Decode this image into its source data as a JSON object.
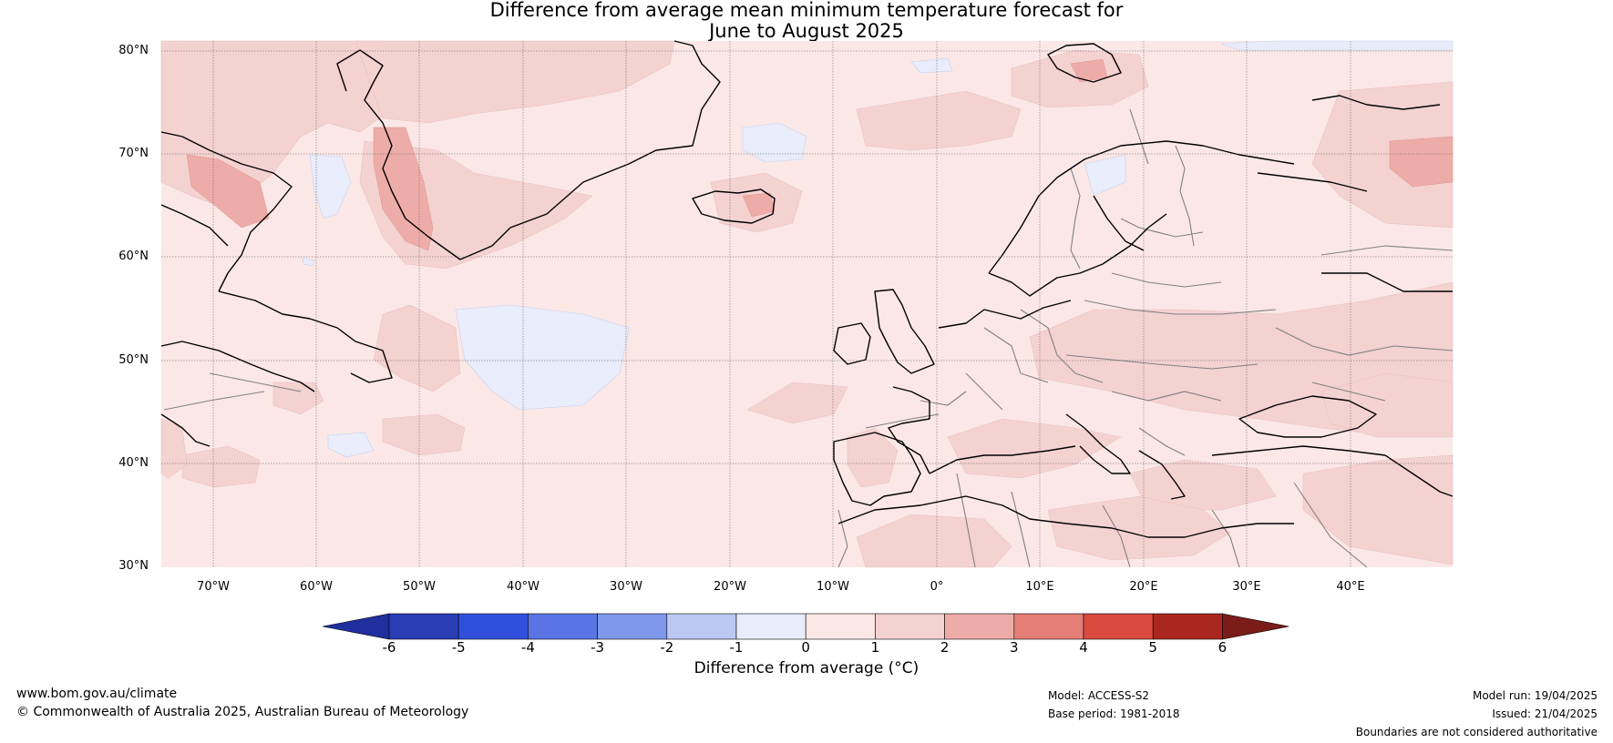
{
  "title_line1": "Difference from average mean minimum temperature forecast for",
  "title_line2": "June to August 2025",
  "lat_labels": [
    "80°N",
    "70°N",
    "60°N",
    "50°N",
    "40°N",
    "30°N"
  ],
  "lon_labels": [
    "70°W",
    "60°W",
    "50°W",
    "40°W",
    "30°W",
    "20°W",
    "10°W",
    "0°",
    "10°E",
    "20°E",
    "30°E",
    "40°E"
  ],
  "colorbar": {
    "ticks": [
      "-6",
      "-5",
      "-4",
      "-3",
      "-2",
      "-1",
      "0",
      "1",
      "2",
      "3",
      "4",
      "5",
      "6"
    ],
    "colors": [
      "#1f2f9e",
      "#2a3db5",
      "#3050dc",
      "#5a74e6",
      "#8098eb",
      "#bcc8f2",
      "#e8ecfb",
      "#fbe8e6",
      "#f4d2d0",
      "#eeaca8",
      "#e47e76",
      "#da4a3f",
      "#a9271f",
      "#7a1c17"
    ],
    "label": "Difference from average (°C)"
  },
  "footer": {
    "url": "www.bom.gov.au/climate",
    "copyright": "© Commonwealth of Australia 2025, Australian Bureau of Meteorology",
    "model": "Model: ACCESS-S2",
    "base_period": "Base period: 1981-2018",
    "model_run": "Model run: 19/04/2025",
    "issued": "Issued: 21/04/2025",
    "disclaimer": "Boundaries are not considered authoritative"
  }
}
